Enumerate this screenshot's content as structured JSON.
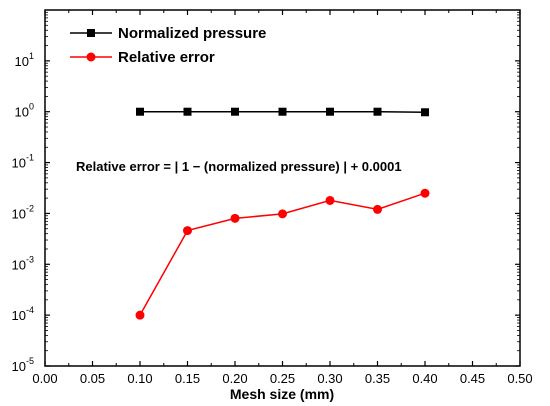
{
  "chart_data": {
    "type": "line",
    "xlabel": "Mesh size (mm)",
    "ylabel": "",
    "xlim": [
      0.0,
      0.5
    ],
    "ylim": [
      1e-05,
      100
    ],
    "y_scale": "log",
    "x_ticks": [
      "0.00",
      "0.05",
      "0.10",
      "0.15",
      "0.20",
      "0.25",
      "0.30",
      "0.35",
      "0.40",
      "0.45",
      "0.50"
    ],
    "y_ticks": [
      {
        "base": "10",
        "exp": "1"
      },
      {
        "base": "10",
        "exp": "0"
      },
      {
        "base": "10",
        "exp": "-1"
      },
      {
        "base": "10",
        "exp": "-2"
      },
      {
        "base": "10",
        "exp": "-3"
      },
      {
        "base": "10",
        "exp": "-4"
      },
      {
        "base": "10",
        "exp": "-5"
      }
    ],
    "x": [
      0.1,
      0.15,
      0.2,
      0.25,
      0.3,
      0.35,
      0.4
    ],
    "series": [
      {
        "name": "Normalized pressure",
        "color": "#000000",
        "marker": "square",
        "values": [
          1.0,
          1.0,
          1.0,
          1.0,
          1.0,
          1.0,
          0.975
        ]
      },
      {
        "name": "Relative error",
        "color": "#ff0000",
        "marker": "circle",
        "values": [
          0.0001,
          0.0046,
          0.008,
          0.0098,
          0.018,
          0.012,
          0.025
        ]
      }
    ],
    "annotations": [
      "Relative error = | 1 − (normalized pressure) | + 0.0001"
    ],
    "legend_position": "top-left",
    "grid": false
  }
}
